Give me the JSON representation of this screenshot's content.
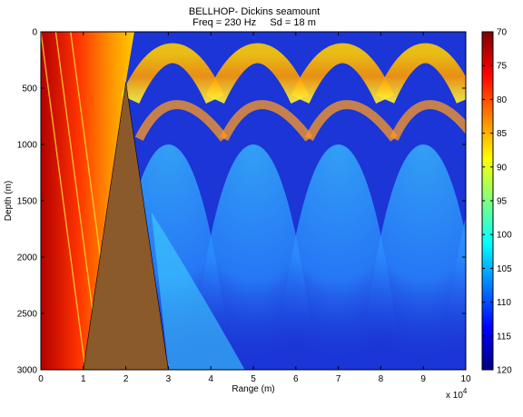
{
  "chart_data": {
    "type": "heatmap",
    "title": "BELLHOP- Dickins seamount",
    "subtitle": "Freq = 230 Hz     Sd = 18 m",
    "xlabel": "Range (m)",
    "ylabel": "Depth (m)",
    "x_multiplier": "x 10",
    "x_multiplier_exp": "4",
    "xlim": [
      0,
      10
    ],
    "ylim": [
      0,
      3000
    ],
    "y_reversed": true,
    "xticks": [
      "0",
      "1",
      "2",
      "3",
      "4",
      "5",
      "6",
      "7",
      "8",
      "9",
      "10"
    ],
    "yticks": [
      "0",
      "500",
      "1000",
      "1500",
      "2000",
      "2500",
      "3000"
    ],
    "colorbar": {
      "min": 70,
      "max": 120,
      "reversed": true,
      "colormap": "jet",
      "ticks": [
        "70",
        "75",
        "80",
        "85",
        "90",
        "95",
        "100",
        "105",
        "110",
        "115",
        "120"
      ]
    },
    "seamount": {
      "vertices": [
        [
          1,
          3000
        ],
        [
          2,
          450
        ],
        [
          3,
          3000
        ]
      ],
      "color": "#8b5a2b"
    },
    "features": {
      "upper_bounces": [
        [
          2.1,
          600
        ],
        [
          4.1,
          600
        ],
        [
          6.1,
          600
        ],
        [
          8.1,
          600
        ],
        [
          10.0,
          600
        ]
      ],
      "near_field_ray_x": [
        0.0,
        0.35,
        0.7
      ]
    },
    "background": "#1b35d6"
  }
}
